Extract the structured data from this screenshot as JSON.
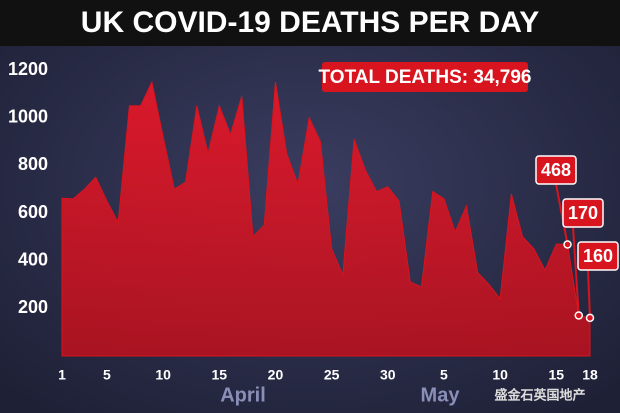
{
  "chart_data": {
    "type": "area",
    "title": "UK COVID-19 DEATHS PER DAY",
    "annotation": "TOTAL DEATHS: 34,796",
    "months": [
      "April",
      "May"
    ],
    "watermark": "盛金石英国地产",
    "categories": [
      "1",
      null,
      null,
      null,
      "5",
      null,
      null,
      null,
      null,
      "10",
      null,
      null,
      null,
      null,
      "15",
      null,
      null,
      null,
      null,
      "20",
      null,
      null,
      null,
      null,
      "25",
      null,
      null,
      null,
      null,
      "30",
      null,
      null,
      null,
      null,
      "5",
      null,
      null,
      null,
      null,
      "10",
      null,
      null,
      null,
      null,
      "15",
      null,
      null,
      "18"
    ],
    "values": [
      662,
      660,
      700,
      750,
      650,
      560,
      1050,
      1050,
      1150,
      920,
      700,
      730,
      1050,
      850,
      1050,
      930,
      1090,
      500,
      550,
      1150,
      850,
      720,
      1000,
      900,
      450,
      340,
      910,
      780,
      690,
      710,
      650,
      310,
      290,
      690,
      660,
      520,
      630,
      350,
      300,
      240,
      680,
      500,
      450,
      360,
      470,
      468,
      170,
      160
    ],
    "color": "#d8141e",
    "ylim": [
      0,
      1200
    ],
    "yticks": [
      200,
      400,
      600,
      800,
      1000,
      1200
    ],
    "grid": false
  }
}
